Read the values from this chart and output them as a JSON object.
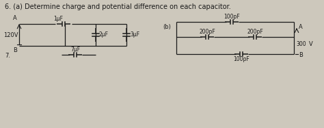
{
  "bg_color": "#cdc8bc",
  "title_text": "6. (a) Determine charge and potential difference on each capacitor.",
  "label_7": "7.",
  "label_b": "(b)",
  "circuit_a": {
    "label_A": "A",
    "label_B": "B",
    "voltage": "120V",
    "cap1": "1μF",
    "cap2": "2μF",
    "cap3": "3μF",
    "cap7": "7μF"
  },
  "circuit_b": {
    "cap_top": "100pF",
    "cap_mid_left": "200pF",
    "cap_mid_right": "200pF",
    "cap_bot": "100pF",
    "label_A": "A",
    "label_B": "B",
    "voltage": "300",
    "volt_unit": "V"
  }
}
